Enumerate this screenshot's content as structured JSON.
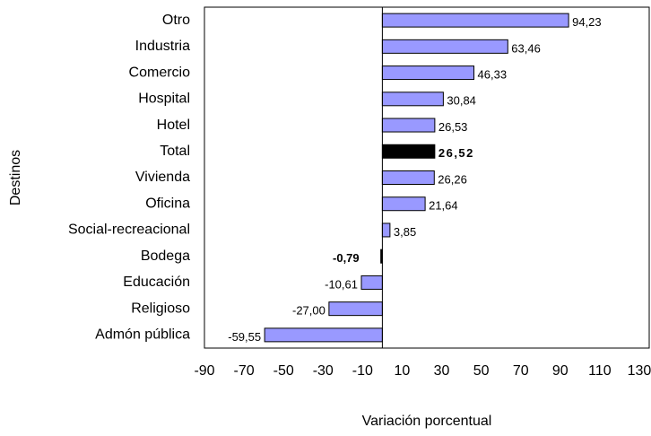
{
  "chart_data": {
    "type": "bar",
    "orientation": "horizontal",
    "x_label": "Variación porcentual",
    "y_label": "Destinos",
    "categories": [
      "Otro",
      "Industria",
      "Comercio",
      "Hospital",
      "Hotel",
      "Total",
      "Vivienda",
      "Oficina",
      "Social-recreacional",
      "Bodega",
      "Educación",
      "Religioso",
      "Admón pública"
    ],
    "values": [
      94.23,
      63.46,
      46.33,
      30.84,
      26.53,
      26.52,
      26.26,
      21.64,
      3.85,
      -0.79,
      -10.61,
      -27.0,
      -59.55
    ],
    "value_labels": [
      "94,23",
      "63,46",
      "46,33",
      "30,84",
      "26,53",
      "26,52",
      "26,26",
      "21,64",
      "3,85",
      "-0,79",
      "-10,61",
      "-27,00",
      "-59,55"
    ],
    "colors": [
      "#9999ff",
      "#9999ff",
      "#9999ff",
      "#9999ff",
      "#9999ff",
      "#000000",
      "#9999ff",
      "#9999ff",
      "#9999ff",
      "#000000",
      "#9999ff",
      "#9999ff",
      "#9999ff"
    ],
    "label_bold": [
      false,
      false,
      false,
      false,
      false,
      true,
      false,
      false,
      false,
      true,
      false,
      false,
      false
    ],
    "xlim": [
      -90,
      135
    ],
    "xticks": [
      -90,
      -70,
      -50,
      -30,
      -10,
      10,
      30,
      50,
      70,
      90,
      110,
      130
    ],
    "grid": false
  }
}
